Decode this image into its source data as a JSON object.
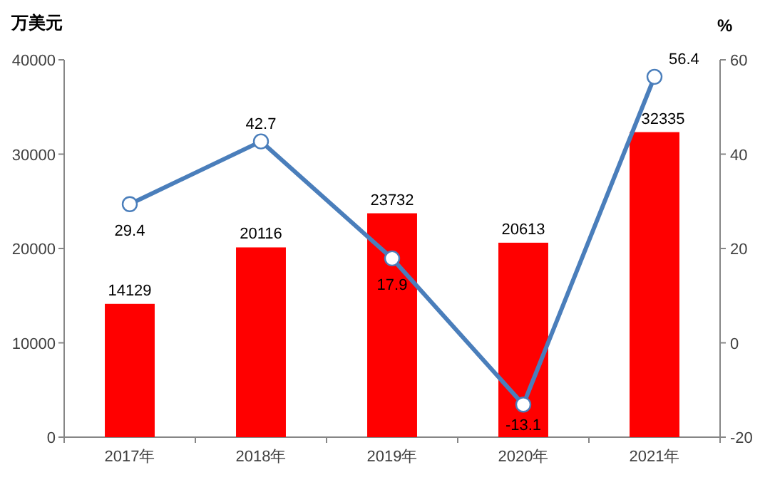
{
  "chart_data": {
    "type": "bar",
    "ylabel": "万美元",
    "y2label": "%",
    "categories": [
      "2017年",
      "2018年",
      "2019年",
      "2020年",
      "2021年"
    ],
    "series": [
      {
        "color": "#ff0000",
        "values": [
          14129,
          20116,
          23732,
          20613,
          32335
        ]
      },
      {
        "type": "line",
        "axis": "y2",
        "color": "#4a7ebb",
        "marker": "circle",
        "values": [
          29.4,
          42.7,
          17.9,
          -13.1,
          56.4
        ]
      }
    ],
    "ylim": [
      0,
      40000
    ],
    "yticks": [
      0,
      10000,
      20000,
      30000,
      40000
    ],
    "y2lim": [
      -20,
      60
    ],
    "y2ticks": [
      -20,
      0,
      20,
      40,
      60
    ],
    "data_labels": true,
    "grid": false
  }
}
